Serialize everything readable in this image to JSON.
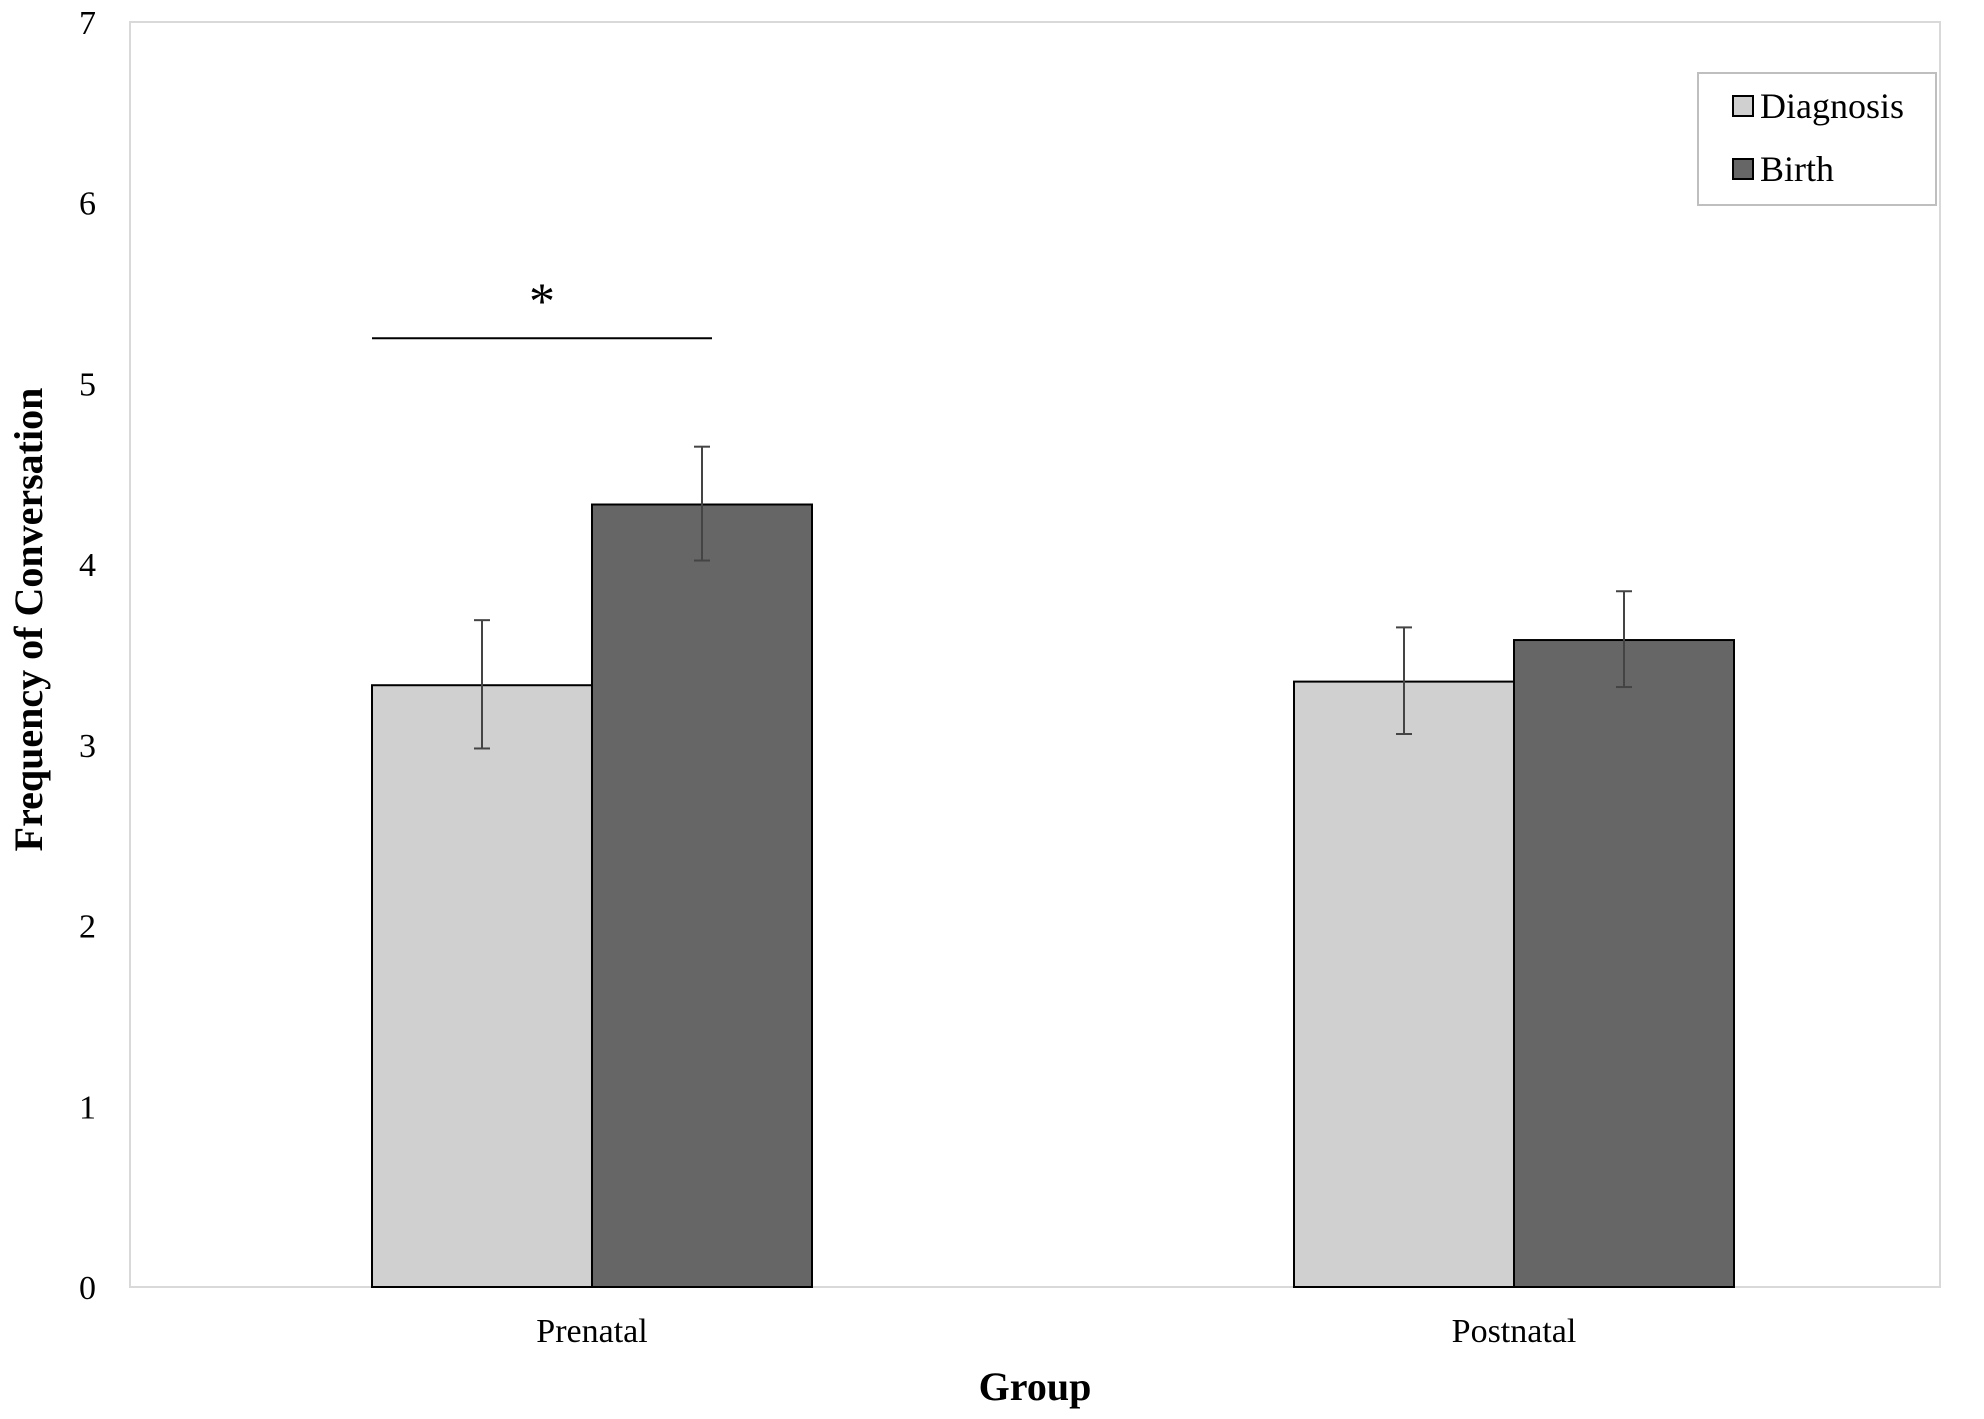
{
  "chart_data": {
    "type": "bar",
    "title": "",
    "xlabel": "Group",
    "ylabel": "Frequency of Conversation",
    "categories": [
      "Prenatal",
      "Postnatal"
    ],
    "ylim": [
      0,
      7
    ],
    "yticks": [
      0,
      1,
      2,
      3,
      4,
      5,
      6,
      7
    ],
    "grid": false,
    "legend_position": "top-right",
    "series": [
      {
        "name": "Diagnosis",
        "color": "#d0d0d0",
        "values": [
          3.33,
          3.35
        ],
        "error_low": [
          2.98,
          3.06
        ],
        "error_high": [
          3.69,
          3.65
        ]
      },
      {
        "name": "Birth",
        "color": "#666666",
        "values": [
          4.33,
          3.58
        ],
        "error_low": [
          4.02,
          3.32
        ],
        "error_high": [
          4.65,
          3.85
        ]
      }
    ],
    "annotations": [
      {
        "text": "*",
        "category": "Prenatal",
        "y": 5.25
      }
    ]
  }
}
